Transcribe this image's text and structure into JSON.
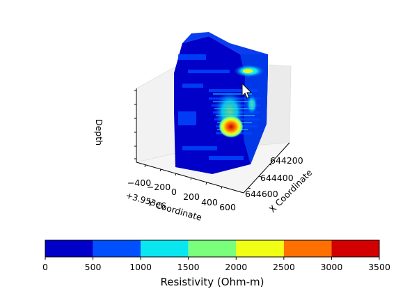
{
  "chart_data": {
    "type": "heatmap",
    "subtype": "3d-voxel-volume",
    "axes": {
      "x": {
        "label": "X Coordinate",
        "ticks": [
          "644200",
          "644400",
          "644600"
        ]
      },
      "y": {
        "label": "Y Coordinate",
        "ticks": [
          "−400",
          "−200",
          "0",
          "200",
          "400",
          "600"
        ],
        "offset": "+3.953e6"
      },
      "z": {
        "label": "Depth",
        "ticks": []
      }
    },
    "colorbar": {
      "label": "Resistivity (Ohm-m)",
      "ticks": [
        "0",
        "500",
        "1000",
        "1500",
        "2000",
        "2500",
        "3000",
        "3500"
      ],
      "bins": [
        {
          "from": 0,
          "to": 500,
          "color": "#0000c8"
        },
        {
          "from": 500,
          "to": 1000,
          "color": "#0050ff"
        },
        {
          "from": 1000,
          "to": 1500,
          "color": "#0ae6f0"
        },
        {
          "from": 1500,
          "to": 2000,
          "color": "#7aff7a"
        },
        {
          "from": 2000,
          "to": 2500,
          "color": "#f0ff14"
        },
        {
          "from": 2500,
          "to": 3000,
          "color": "#ff7000"
        },
        {
          "from": 3000,
          "to": 3500,
          "color": "#d20000"
        }
      ]
    },
    "grid": true
  }
}
